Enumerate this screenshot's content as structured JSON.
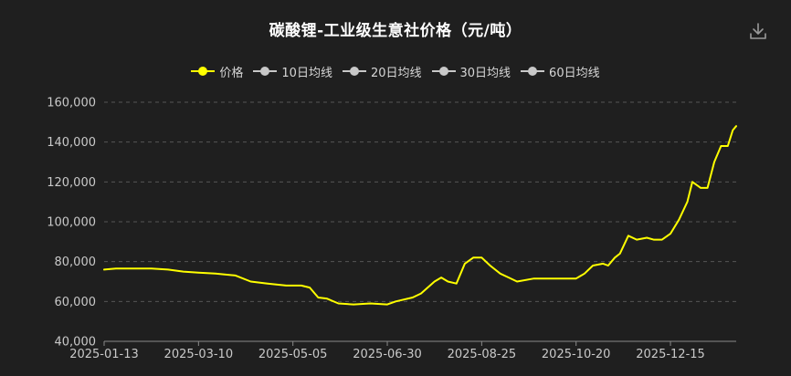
{
  "chart_data": {
    "type": "line",
    "title": "碳酸锂-工业级生意社价格（元/吨）",
    "legend_position": "top-center",
    "grid": true,
    "legend": [
      {
        "name": "价格",
        "color": "#ffff00",
        "active": true
      },
      {
        "name": "10日均线",
        "color": "#c8c8c8",
        "active": false
      },
      {
        "name": "20日均线",
        "color": "#c8c8c8",
        "active": false
      },
      {
        "name": "30日均线",
        "color": "#c8c8c8",
        "active": false
      },
      {
        "name": "60日均线",
        "color": "#c8c8c8",
        "active": false
      }
    ],
    "x_ticks": [
      "2025-01-13",
      "2025-03-10",
      "2025-05-05",
      "2025-06-30",
      "2025-08-25",
      "2025-10-20",
      "2025-12-15"
    ],
    "x_range": [
      "2025-01-13",
      "2026-01-23"
    ],
    "y_ticks": [
      "40,000",
      "60,000",
      "80,000",
      "100,000",
      "120,000",
      "140,000",
      "160,000"
    ],
    "ylim": [
      40000,
      160000
    ],
    "series": [
      {
        "name": "价格",
        "color": "#ffff00",
        "x": [
          "2025-01-13",
          "2025-01-20",
          "2025-02-01",
          "2025-02-10",
          "2025-02-20",
          "2025-03-01",
          "2025-03-10",
          "2025-03-20",
          "2025-04-01",
          "2025-04-10",
          "2025-04-20",
          "2025-05-01",
          "2025-05-10",
          "2025-05-15",
          "2025-05-20",
          "2025-05-25",
          "2025-06-01",
          "2025-06-10",
          "2025-06-20",
          "2025-06-30",
          "2025-07-05",
          "2025-07-15",
          "2025-07-20",
          "2025-07-28",
          "2025-08-01",
          "2025-08-05",
          "2025-08-10",
          "2025-08-15",
          "2025-08-20",
          "2025-08-25",
          "2025-08-30",
          "2025-09-05",
          "2025-09-10",
          "2025-09-15",
          "2025-09-25",
          "2025-10-10",
          "2025-10-20",
          "2025-10-25",
          "2025-10-30",
          "2025-11-05",
          "2025-11-08",
          "2025-11-12",
          "2025-11-15",
          "2025-11-20",
          "2025-11-25",
          "2025-12-01",
          "2025-12-05",
          "2025-12-10",
          "2025-12-15",
          "2025-12-20",
          "2025-12-25",
          "2025-12-28",
          "2026-01-02",
          "2026-01-06",
          "2026-01-10",
          "2026-01-14",
          "2026-01-18",
          "2026-01-21",
          "2026-01-23"
        ],
        "values": [
          76000,
          76500,
          76500,
          76500,
          76000,
          75000,
          74500,
          74000,
          73000,
          70000,
          69000,
          68000,
          68000,
          67000,
          62000,
          61500,
          59000,
          58500,
          59000,
          58500,
          60000,
          62000,
          64000,
          70000,
          72000,
          70000,
          69000,
          79000,
          82000,
          82000,
          78000,
          74000,
          72000,
          70000,
          71500,
          71500,
          71500,
          74000,
          78000,
          79000,
          78000,
          82000,
          84000,
          93000,
          91000,
          92000,
          91000,
          91000,
          94000,
          101000,
          110000,
          120000,
          117000,
          117000,
          130000,
          138000,
          138000,
          146000,
          148000
        ]
      }
    ]
  },
  "toolbar": {
    "download_icon": "download-icon"
  }
}
